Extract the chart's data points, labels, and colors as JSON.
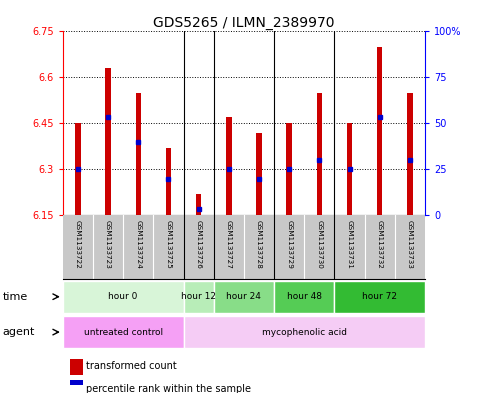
{
  "title": "GDS5265 / ILMN_2389970",
  "samples": [
    "GSM1133722",
    "GSM1133723",
    "GSM1133724",
    "GSM1133725",
    "GSM1133726",
    "GSM1133727",
    "GSM1133728",
    "GSM1133729",
    "GSM1133730",
    "GSM1133731",
    "GSM1133732",
    "GSM1133733"
  ],
  "bar_base": 6.15,
  "bar_tops": [
    6.45,
    6.63,
    6.55,
    6.37,
    6.22,
    6.47,
    6.42,
    6.45,
    6.55,
    6.45,
    6.7,
    6.55
  ],
  "percentile_values": [
    6.3,
    6.47,
    6.39,
    6.27,
    6.17,
    6.3,
    6.27,
    6.3,
    6.33,
    6.3,
    6.47,
    6.33
  ],
  "ylim_left": [
    6.15,
    6.75
  ],
  "yticks_left": [
    6.15,
    6.3,
    6.45,
    6.6,
    6.75
  ],
  "yticks_right": [
    0,
    25,
    50,
    75,
    100
  ],
  "bar_color": "#cc0000",
  "percentile_color": "#0000cc",
  "time_groups": [
    {
      "label": "hour 0",
      "start": 0,
      "end": 4,
      "color": "#d8f5d8"
    },
    {
      "label": "hour 12",
      "start": 4,
      "end": 5,
      "color": "#b8edb8"
    },
    {
      "label": "hour 24",
      "start": 5,
      "end": 7,
      "color": "#88dd88"
    },
    {
      "label": "hour 48",
      "start": 7,
      "end": 9,
      "color": "#55cc55"
    },
    {
      "label": "hour 72",
      "start": 9,
      "end": 12,
      "color": "#33bb33"
    }
  ],
  "agent_groups": [
    {
      "label": "untreated control",
      "start": 0,
      "end": 4,
      "color": "#f5a0f5"
    },
    {
      "label": "mycophenolic acid",
      "start": 4,
      "end": 12,
      "color": "#f5ccf5"
    }
  ],
  "legend_items": [
    {
      "label": "transformed count",
      "color": "#cc0000"
    },
    {
      "label": "percentile rank within the sample",
      "color": "#0000cc"
    }
  ],
  "bar_width": 0.18,
  "background_plot": "#ffffff",
  "background_sample": "#c8c8c8",
  "title_fontsize": 10,
  "group_boundaries": [
    4,
    5,
    7,
    9
  ]
}
